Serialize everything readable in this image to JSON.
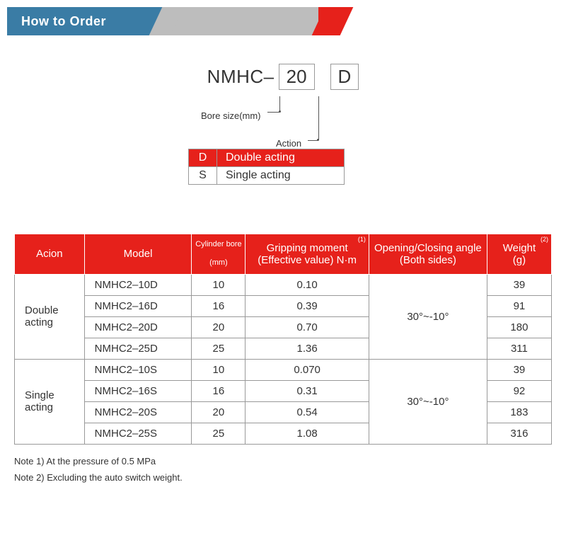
{
  "header": {
    "title": "How to Order"
  },
  "order_code": {
    "prefix": "NMHC–",
    "box1": "20",
    "box2": "D",
    "bore_label": "Bore size(mm)",
    "action_label": "Action"
  },
  "action_options": [
    {
      "code": "D",
      "desc": "Double acting",
      "highlighted": true
    },
    {
      "code": "S",
      "desc": "Single acting",
      "highlighted": false
    }
  ],
  "spec_table": {
    "columns": [
      {
        "label": "Acion",
        "width": "13%"
      },
      {
        "label": "Model",
        "width": "20%"
      },
      {
        "label": "Cylinder bore (mm)",
        "width": "10%",
        "small": true
      },
      {
        "label": "Gripping moment (Effective value) N·m",
        "width": "23%",
        "sup": "(1)"
      },
      {
        "label": "Opening/Closing angle (Both sides)",
        "width": "22%"
      },
      {
        "label": "Weight (g)",
        "width": "12%",
        "sup": "(2)"
      }
    ],
    "groups": [
      {
        "action": "Double acting",
        "angle": "30°~-10°",
        "rows": [
          {
            "model": "NMHC2–10D",
            "bore": "10",
            "moment": "0.10",
            "weight": "39"
          },
          {
            "model": "NMHC2–16D",
            "bore": "16",
            "moment": "0.39",
            "weight": "91"
          },
          {
            "model": "NMHC2–20D",
            "bore": "20",
            "moment": "0.70",
            "weight": "180"
          },
          {
            "model": "NMHC2–25D",
            "bore": "25",
            "moment": "1.36",
            "weight": "311"
          }
        ]
      },
      {
        "action": "Single acting",
        "angle": "30°~-10°",
        "rows": [
          {
            "model": "NMHC2–10S",
            "bore": "10",
            "moment": "0.070",
            "weight": "39"
          },
          {
            "model": "NMHC2–16S",
            "bore": "16",
            "moment": "0.31",
            "weight": "92"
          },
          {
            "model": "NMHC2–20S",
            "bore": "20",
            "moment": "0.54",
            "weight": "183"
          },
          {
            "model": "NMHC2–25S",
            "bore": "25",
            "moment": "1.08",
            "weight": "316"
          }
        ]
      }
    ]
  },
  "notes": [
    "Note 1) At the pressure of 0.5 MPa",
    "Note 2) Excluding the auto switch weight."
  ],
  "colors": {
    "red": "#e6211b",
    "blue": "#3a7ca5",
    "grey": "#bdbdbd",
    "border": "#999999",
    "text": "#333333"
  }
}
